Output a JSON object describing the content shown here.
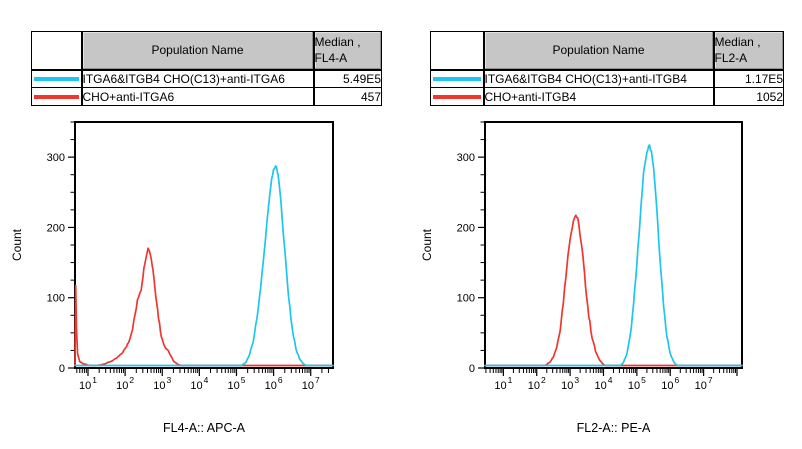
{
  "colors": {
    "series_cyan": "#1ec5f0",
    "series_red": "#f1362e",
    "table_header_bg": "#c6c6c6",
    "axis": "#000000",
    "background": "#ffffff"
  },
  "panels": [
    {
      "table": {
        "headers": {
          "population": "Population Name",
          "median_line1": "Median ,",
          "median_line2": "FL4-A"
        },
        "rows": [
          {
            "series": "cyan",
            "name": "ITGA6&ITGB4 CHO(C13)+anti-ITGA6",
            "median": "5.49E5"
          },
          {
            "series": "red",
            "name": "CHO+anti-ITGA6",
            "median": "457"
          }
        ]
      }
    },
    {
      "table": {
        "headers": {
          "population": "Population Name",
          "median_line1": "Median ,",
          "median_line2": "FL2-A"
        },
        "rows": [
          {
            "series": "cyan",
            "name": "ITGA6&ITGB4 CHO(C13)+anti-ITGB4",
            "median": "1.17E5"
          },
          {
            "series": "red",
            "name": "CHO+anti-ITGB4",
            "median": "1052"
          }
        ]
      }
    }
  ],
  "chart_data": [
    {
      "type": "line",
      "subtype": "flow-cytometry-histogram",
      "title": "",
      "xlabel": "FL4-A:: APC-A",
      "ylabel": "Count",
      "x_scale": "log10",
      "tick_base": "10",
      "xlim_log": [
        0.65,
        7.6
      ],
      "ylim": [
        0,
        350
      ],
      "x_decade_labels": [
        1,
        2,
        3,
        4,
        5,
        6,
        7
      ],
      "y_ticks": [
        0,
        100,
        200,
        300
      ],
      "y_minor_step": 25,
      "grid": false,
      "legend_position": "table-above",
      "series": [
        {
          "name": "ITGA6&ITGB4 CHO(C13)+anti-ITGA6",
          "color_key": "series_cyan",
          "median": "5.49E5",
          "points": [
            [
              0.65,
              0
            ],
            [
              4.85,
              0
            ],
            [
              4.95,
              1
            ],
            [
              5.05,
              2
            ],
            [
              5.15,
              4
            ],
            [
              5.25,
              8
            ],
            [
              5.35,
              18
            ],
            [
              5.45,
              38
            ],
            [
              5.55,
              70
            ],
            [
              5.65,
              115
            ],
            [
              5.75,
              165
            ],
            [
              5.85,
              225
            ],
            [
              5.95,
              268
            ],
            [
              6.0,
              282
            ],
            [
              6.05,
              288
            ],
            [
              6.1,
              280
            ],
            [
              6.15,
              262
            ],
            [
              6.2,
              234
            ],
            [
              6.3,
              168
            ],
            [
              6.4,
              104
            ],
            [
              6.5,
              57
            ],
            [
              6.6,
              27
            ],
            [
              6.7,
              13
            ],
            [
              6.8,
              6
            ],
            [
              6.9,
              3
            ],
            [
              7.0,
              1
            ],
            [
              7.1,
              0
            ],
            [
              7.6,
              0
            ]
          ]
        },
        {
          "name": "CHO+anti-ITGA6",
          "color_key": "series_red",
          "median": "457",
          "points": [
            [
              0.65,
              0
            ],
            [
              0.67,
              115
            ],
            [
              0.69,
              58
            ],
            [
              0.72,
              20
            ],
            [
              0.78,
              9
            ],
            [
              0.88,
              6
            ],
            [
              1.0,
              4
            ],
            [
              1.15,
              3
            ],
            [
              1.3,
              4
            ],
            [
              1.45,
              6
            ],
            [
              1.6,
              9
            ],
            [
              1.75,
              13
            ],
            [
              1.9,
              20
            ],
            [
              2.0,
              27
            ],
            [
              2.1,
              38
            ],
            [
              2.2,
              56
            ],
            [
              2.27,
              76
            ],
            [
              2.33,
              95
            ],
            [
              2.38,
              105
            ],
            [
              2.43,
              112
            ],
            [
              2.48,
              131
            ],
            [
              2.53,
              150
            ],
            [
              2.58,
              163
            ],
            [
              2.62,
              170
            ],
            [
              2.66,
              167
            ],
            [
              2.7,
              157
            ],
            [
              2.75,
              140
            ],
            [
              2.8,
              117
            ],
            [
              2.85,
              94
            ],
            [
              2.9,
              72
            ],
            [
              2.95,
              54
            ],
            [
              3.0,
              40
            ],
            [
              3.08,
              30
            ],
            [
              3.16,
              25
            ],
            [
              3.24,
              16
            ],
            [
              3.32,
              9
            ],
            [
              3.42,
              5
            ],
            [
              3.55,
              3
            ],
            [
              3.7,
              2
            ],
            [
              3.85,
              1
            ],
            [
              4.0,
              0
            ],
            [
              7.6,
              0
            ]
          ]
        }
      ]
    },
    {
      "type": "line",
      "subtype": "flow-cytometry-histogram",
      "title": "",
      "xlabel": "FL2-A:: PE-A",
      "ylabel": "Count",
      "x_scale": "log10",
      "tick_base": "10",
      "xlim_log": [
        0.45,
        8.15
      ],
      "ylim": [
        0,
        350
      ],
      "x_decade_labels": [
        1,
        2,
        3,
        4,
        5,
        6,
        7
      ],
      "y_ticks": [
        0,
        100,
        200,
        300
      ],
      "y_minor_step": 25,
      "grid": false,
      "legend_position": "table-above",
      "series": [
        {
          "name": "ITGA6&ITGB4 CHO(C13)+anti-ITGB4",
          "color_key": "series_cyan",
          "median": "1.17E5",
          "points": [
            [
              0.45,
              0
            ],
            [
              4.3,
              0
            ],
            [
              4.4,
              1
            ],
            [
              4.5,
              3
            ],
            [
              4.6,
              8
            ],
            [
              4.7,
              20
            ],
            [
              4.8,
              45
            ],
            [
              4.9,
              88
            ],
            [
              5.0,
              148
            ],
            [
              5.1,
              215
            ],
            [
              5.2,
              275
            ],
            [
              5.3,
              308
            ],
            [
              5.38,
              317
            ],
            [
              5.44,
              308
            ],
            [
              5.5,
              285
            ],
            [
              5.6,
              224
            ],
            [
              5.7,
              150
            ],
            [
              5.8,
              88
            ],
            [
              5.9,
              45
            ],
            [
              6.0,
              20
            ],
            [
              6.1,
              9
            ],
            [
              6.2,
              4
            ],
            [
              6.3,
              1
            ],
            [
              6.45,
              0
            ],
            [
              8.15,
              0
            ]
          ]
        },
        {
          "name": "CHO+anti-ITGB4",
          "color_key": "series_red",
          "median": "1052",
          "points": [
            [
              0.45,
              0
            ],
            [
              2.0,
              0
            ],
            [
              2.1,
              1
            ],
            [
              2.2,
              3
            ],
            [
              2.3,
              5
            ],
            [
              2.4,
              9
            ],
            [
              2.5,
              16
            ],
            [
              2.6,
              30
            ],
            [
              2.7,
              55
            ],
            [
              2.8,
              95
            ],
            [
              2.9,
              145
            ],
            [
              3.0,
              185
            ],
            [
              3.1,
              210
            ],
            [
              3.17,
              218
            ],
            [
              3.23,
              211
            ],
            [
              3.3,
              190
            ],
            [
              3.38,
              160
            ],
            [
              3.46,
              118
            ],
            [
              3.56,
              74
            ],
            [
              3.66,
              44
            ],
            [
              3.76,
              24
            ],
            [
              3.86,
              13
            ],
            [
              3.96,
              7
            ],
            [
              4.06,
              3
            ],
            [
              4.16,
              1
            ],
            [
              4.3,
              0
            ],
            [
              8.15,
              0
            ]
          ]
        }
      ]
    }
  ]
}
